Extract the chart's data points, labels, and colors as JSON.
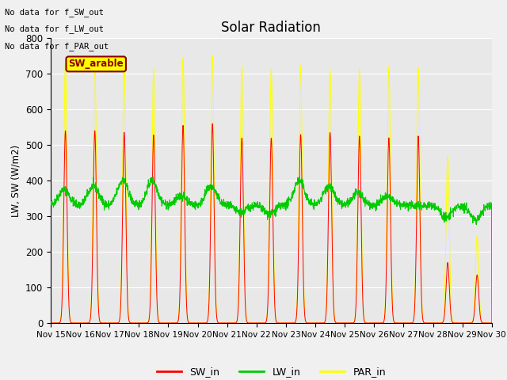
{
  "title": "Solar Radiation",
  "ylabel": "LW, SW (W/m2)",
  "annotations": [
    "No data for f_SW_out",
    "No data for f_LW_out",
    "No data for f_PAR_out"
  ],
  "site_label": "SW_arable",
  "ylim": [
    0,
    800
  ],
  "tick_labels": [
    "Nov 15",
    "Nov 16",
    "Nov 17",
    "Nov 18",
    "Nov 19",
    "Nov 20",
    "Nov 21",
    "Nov 22",
    "Nov 23",
    "Nov 24",
    "Nov 25",
    "Nov 26",
    "Nov 27",
    "Nov 28",
    "Nov 29",
    "Nov 30"
  ],
  "colors": {
    "SW_in": "#ff0000",
    "LW_in": "#00cc00",
    "PAR_in": "#ffff00",
    "fig_bg": "#f0f0f0",
    "plot_bg": "#e8e8e8",
    "grid": "#ffffff"
  },
  "total_days": 15,
  "sw_peaks": [
    540,
    540,
    535,
    528,
    555,
    560,
    520,
    520,
    530,
    535,
    525,
    520,
    525,
    170,
    135
  ],
  "par_peaks": [
    735,
    730,
    720,
    715,
    745,
    750,
    720,
    715,
    725,
    710,
    715,
    720,
    715,
    470,
    245
  ],
  "lw_base": 330,
  "lw_day_peaks": [
    375,
    385,
    400,
    400,
    358,
    385,
    310,
    305,
    400,
    385,
    365,
    355,
    330,
    295,
    290
  ],
  "peak_sigma": 0.055,
  "lw_sigma": 0.18
}
